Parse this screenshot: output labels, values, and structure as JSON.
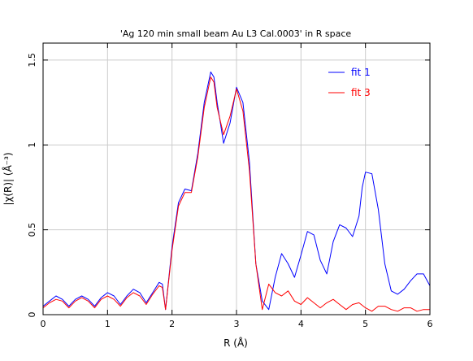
{
  "chart_data": {
    "type": "line",
    "title": "'Ag 120 min small beam Au L3 Cal.0003' in R space",
    "xlabel": "R (Å)",
    "ylabel": "|χ(R)| (Å⁻³)",
    "xlim": [
      0,
      6
    ],
    "ylim": [
      0,
      1.6
    ],
    "xticks": [
      0,
      1,
      2,
      3,
      4,
      5,
      6
    ],
    "yticks": [
      0,
      0.5,
      1,
      1.5
    ],
    "xtick_labels": [
      "0",
      "1",
      "2",
      "3",
      "4",
      "5",
      "6"
    ],
    "ytick_labels": [
      "0",
      "0.5",
      "1",
      "1.5"
    ],
    "grid": true,
    "legend": "top-right",
    "series": [
      {
        "name": "fit 1",
        "color": "#0000ff",
        "x": [
          0.0,
          0.1,
          0.2,
          0.3,
          0.4,
          0.5,
          0.6,
          0.7,
          0.8,
          0.9,
          1.0,
          1.1,
          1.2,
          1.3,
          1.4,
          1.5,
          1.6,
          1.7,
          1.8,
          1.85,
          1.9,
          2.0,
          2.1,
          2.2,
          2.3,
          2.4,
          2.5,
          2.6,
          2.65,
          2.7,
          2.8,
          2.9,
          3.0,
          3.1,
          3.2,
          3.3,
          3.4,
          3.5,
          3.6,
          3.7,
          3.8,
          3.9,
          4.0,
          4.1,
          4.2,
          4.3,
          4.4,
          4.5,
          4.6,
          4.7,
          4.8,
          4.9,
          4.95,
          5.0,
          5.1,
          5.2,
          5.3,
          5.4,
          5.5,
          5.6,
          5.7,
          5.8,
          5.9,
          6.0
        ],
        "y": [
          0.05,
          0.08,
          0.11,
          0.09,
          0.05,
          0.09,
          0.11,
          0.09,
          0.05,
          0.1,
          0.13,
          0.11,
          0.06,
          0.11,
          0.15,
          0.13,
          0.07,
          0.13,
          0.19,
          0.18,
          0.03,
          0.4,
          0.66,
          0.74,
          0.73,
          0.95,
          1.25,
          1.43,
          1.4,
          1.25,
          1.01,
          1.13,
          1.34,
          1.25,
          0.9,
          0.3,
          0.08,
          0.03,
          0.22,
          0.36,
          0.3,
          0.22,
          0.35,
          0.49,
          0.47,
          0.32,
          0.24,
          0.43,
          0.53,
          0.51,
          0.46,
          0.58,
          0.75,
          0.84,
          0.83,
          0.62,
          0.3,
          0.14,
          0.12,
          0.15,
          0.2,
          0.24,
          0.24,
          0.17
        ]
      },
      {
        "name": "fit 3",
        "color": "#ff0000",
        "x": [
          0.0,
          0.1,
          0.2,
          0.3,
          0.4,
          0.5,
          0.6,
          0.7,
          0.8,
          0.9,
          1.0,
          1.1,
          1.2,
          1.3,
          1.4,
          1.5,
          1.6,
          1.7,
          1.8,
          1.85,
          1.9,
          2.0,
          2.1,
          2.2,
          2.3,
          2.4,
          2.5,
          2.6,
          2.65,
          2.7,
          2.8,
          2.9,
          3.0,
          3.1,
          3.2,
          3.3,
          3.4,
          3.5,
          3.6,
          3.7,
          3.8,
          3.9,
          4.0,
          4.1,
          4.2,
          4.3,
          4.4,
          4.5,
          4.6,
          4.7,
          4.8,
          4.9,
          5.0,
          5.1,
          5.2,
          5.3,
          5.4,
          5.5,
          5.6,
          5.7,
          5.8,
          5.9,
          6.0
        ],
        "y": [
          0.04,
          0.07,
          0.09,
          0.08,
          0.04,
          0.08,
          0.1,
          0.08,
          0.04,
          0.09,
          0.11,
          0.09,
          0.05,
          0.1,
          0.13,
          0.11,
          0.06,
          0.12,
          0.17,
          0.16,
          0.03,
          0.38,
          0.64,
          0.72,
          0.72,
          0.93,
          1.22,
          1.4,
          1.37,
          1.22,
          1.06,
          1.17,
          1.33,
          1.2,
          0.85,
          0.3,
          0.03,
          0.18,
          0.13,
          0.11,
          0.14,
          0.08,
          0.06,
          0.1,
          0.07,
          0.04,
          0.07,
          0.09,
          0.06,
          0.03,
          0.06,
          0.07,
          0.04,
          0.02,
          0.05,
          0.05,
          0.03,
          0.02,
          0.04,
          0.04,
          0.02,
          0.03,
          0.03
        ]
      }
    ]
  }
}
